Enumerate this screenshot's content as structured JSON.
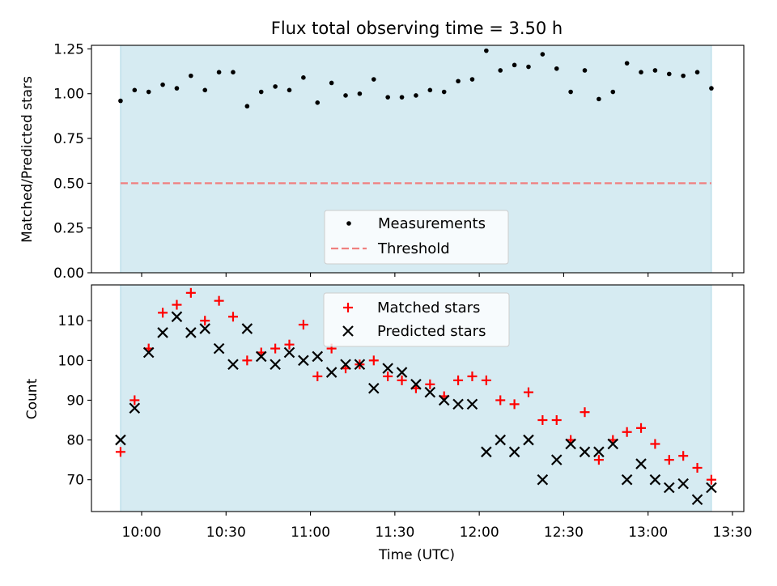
{
  "chart_data": [
    {
      "type": "scatter",
      "title": "Flux total observing time = 3.50 h",
      "xlabel": "",
      "ylabel": "Matched/Predicted stars",
      "ylim": [
        0,
        1.27
      ],
      "yticks": [
        0.0,
        0.25,
        0.5,
        0.75,
        1.0,
        1.25
      ],
      "ytick_labels": [
        "0.00",
        "0.25",
        "0.50",
        "0.75",
        "1.00",
        "1.25"
      ],
      "xticks_min": [
        600,
        630,
        660,
        690,
        720,
        750,
        780,
        810
      ],
      "shaded_span_min": [
        592.5,
        802.5
      ],
      "threshold": 0.5,
      "legend_location": "lower-center",
      "legend": [
        "Measurements",
        "Threshold"
      ],
      "colors": {
        "shade": "#add8e6",
        "points": "#000000",
        "threshold": "#f08080"
      },
      "x_min": [
        592.5,
        597.5,
        602.5,
        607.5,
        612.5,
        617.5,
        622.5,
        627.5,
        632.5,
        637.5,
        642.5,
        647.5,
        652.5,
        657.5,
        662.5,
        667.5,
        672.5,
        677.5,
        682.5,
        687.5,
        692.5,
        697.5,
        702.5,
        707.5,
        712.5,
        717.5,
        722.5,
        727.5,
        732.5,
        737.5,
        742.5,
        747.5,
        752.5,
        757.5,
        762.5,
        767.5,
        772.5,
        777.5,
        782.5,
        787.5,
        792.5,
        797.5,
        802.5
      ],
      "series": [
        {
          "name": "Measurements",
          "values": [
            0.96,
            1.02,
            1.01,
            1.05,
            1.03,
            1.1,
            1.02,
            1.12,
            1.12,
            0.93,
            1.01,
            1.04,
            1.02,
            1.09,
            0.95,
            1.06,
            0.99,
            1.0,
            1.08,
            0.98,
            0.98,
            0.99,
            1.02,
            1.01,
            1.07,
            1.08,
            1.24,
            1.13,
            1.16,
            1.15,
            1.22,
            1.14,
            1.01,
            1.13,
            0.97,
            1.01,
            1.17,
            1.12,
            1.13,
            1.11,
            1.1,
            1.12,
            1.03
          ]
        }
      ]
    },
    {
      "type": "scatter",
      "title": "",
      "xlabel": "Time (UTC)",
      "ylabel": "Count",
      "ylim": [
        62,
        119
      ],
      "yticks": [
        70,
        80,
        90,
        100,
        110
      ],
      "ytick_labels": [
        "70",
        "80",
        "90",
        "100",
        "110"
      ],
      "xticks_min": [
        600,
        630,
        660,
        690,
        720,
        750,
        780,
        810
      ],
      "xtick_labels": [
        "10:00",
        "10:30",
        "11:00",
        "11:30",
        "12:00",
        "12:30",
        "13:00",
        "13:30"
      ],
      "shaded_span_min": [
        592.5,
        802.5
      ],
      "legend_location": "upper-center",
      "legend": [
        "Matched stars",
        "Predicted stars"
      ],
      "colors": {
        "matched": "#ff0000",
        "predicted": "#000000"
      },
      "x_min": [
        592.5,
        597.5,
        602.5,
        607.5,
        612.5,
        617.5,
        622.5,
        627.5,
        632.5,
        637.5,
        642.5,
        647.5,
        652.5,
        657.5,
        662.5,
        667.5,
        672.5,
        677.5,
        682.5,
        687.5,
        692.5,
        697.5,
        702.5,
        707.5,
        712.5,
        717.5,
        722.5,
        727.5,
        732.5,
        737.5,
        742.5,
        747.5,
        752.5,
        757.5,
        762.5,
        767.5,
        772.5,
        777.5,
        782.5,
        787.5,
        792.5,
        797.5,
        802.5
      ],
      "series": [
        {
          "name": "Matched stars",
          "marker": "+",
          "values": [
            77,
            90,
            103,
            112,
            114,
            117,
            110,
            115,
            111,
            100,
            102,
            103,
            104,
            109,
            96,
            103,
            98,
            99,
            100,
            96,
            95,
            93,
            94,
            91,
            95,
            96,
            95,
            90,
            89,
            92,
            85,
            85,
            80,
            87,
            75,
            80,
            82,
            83,
            79,
            75,
            76,
            73,
            70
          ]
        },
        {
          "name": "Predicted stars",
          "marker": "x",
          "values": [
            80,
            88,
            102,
            107,
            111,
            107,
            108,
            103,
            99,
            108,
            101,
            99,
            102,
            100,
            101,
            97,
            99,
            99,
            93,
            98,
            97,
            94,
            92,
            90,
            89,
            89,
            77,
            80,
            77,
            80,
            70,
            75,
            79,
            77,
            77,
            79,
            70,
            74,
            70,
            68,
            69,
            65,
            68
          ]
        }
      ]
    }
  ]
}
